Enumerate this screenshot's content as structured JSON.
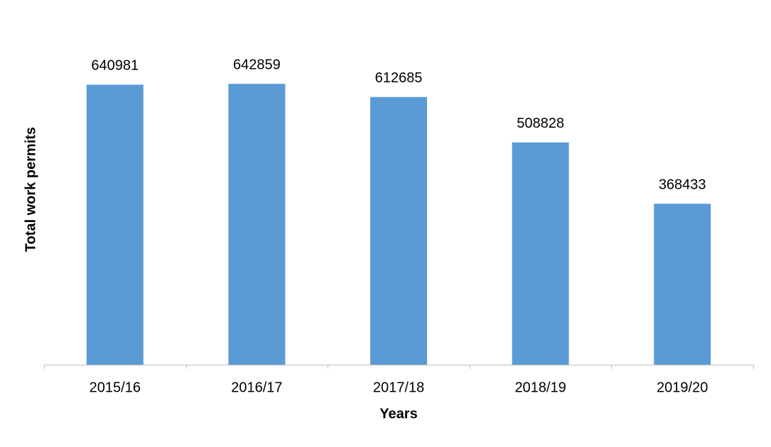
{
  "chart_data": {
    "type": "bar",
    "x_label": "Years",
    "y_label": "Total work permits",
    "categories": [
      "2015/16",
      "2016/17",
      "2017/18",
      "2018/19",
      "2019/20"
    ],
    "values": [
      640981,
      642859,
      612685,
      508828,
      368433
    ],
    "color": "#5b9bd5",
    "ylim": [
      0,
      700000
    ]
  }
}
